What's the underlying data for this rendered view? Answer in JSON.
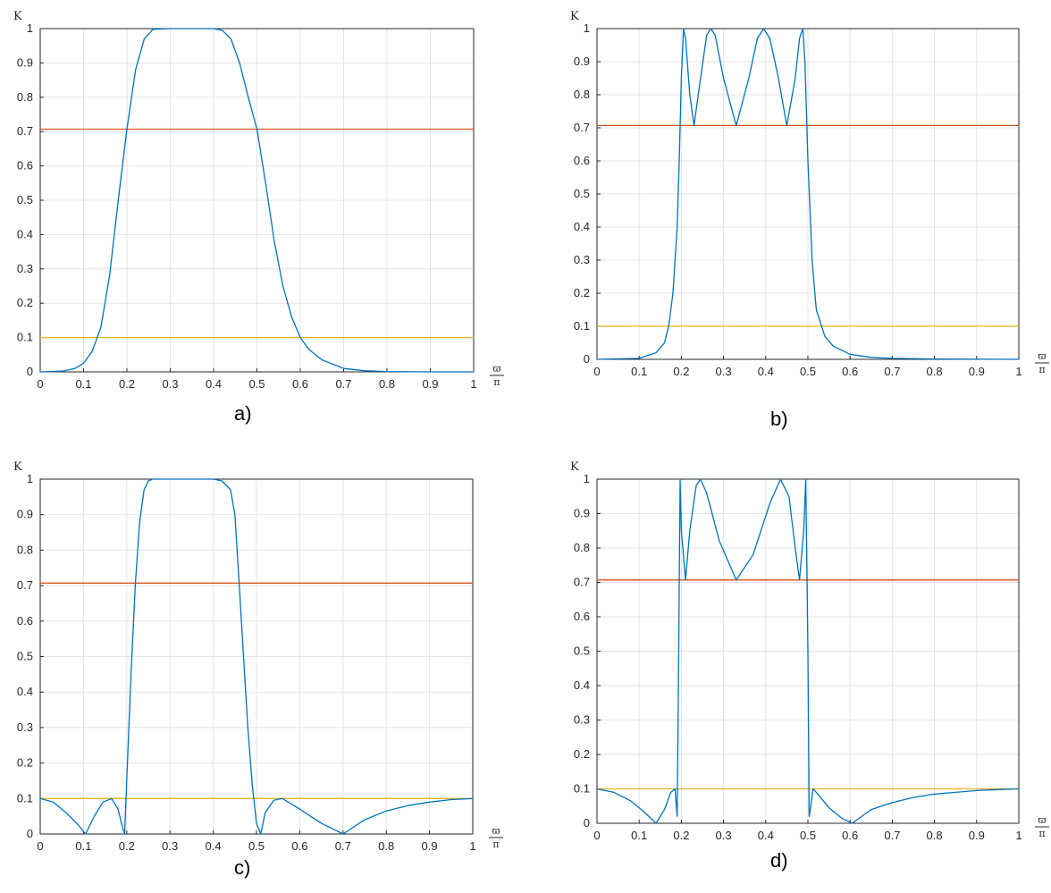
{
  "chart_data": [
    {
      "id": "a",
      "type": "line",
      "caption": "a)",
      "ylabel": "K",
      "xlabel": "ϖ/π",
      "xlim": [
        0,
        1
      ],
      "ylim": [
        0,
        1
      ],
      "grid": true,
      "xticks": [
        "0",
        "0.1",
        "0.2",
        "0.3",
        "0.4",
        "0.5",
        "0.6",
        "0.7",
        "0.8",
        "0.9",
        "1"
      ],
      "yticks": [
        "0",
        "0.1",
        "0.2",
        "0.3",
        "0.4",
        "0.5",
        "0.6",
        "0.7",
        "0.8",
        "0.9",
        "1"
      ],
      "hlines": [
        {
          "y": 0.707,
          "color": "#d95319"
        },
        {
          "y": 0.1,
          "color": "#edb120"
        }
      ],
      "series": [
        {
          "color": "#0072bd",
          "x": [
            0,
            0.05,
            0.08,
            0.1,
            0.12,
            0.14,
            0.16,
            0.18,
            0.2,
            0.22,
            0.24,
            0.26,
            0.3,
            0.35,
            0.4,
            0.42,
            0.44,
            0.46,
            0.48,
            0.5,
            0.52,
            0.54,
            0.56,
            0.58,
            0.6,
            0.62,
            0.65,
            0.7,
            0.75,
            0.8,
            0.9,
            1
          ],
          "y": [
            0,
            0.002,
            0.01,
            0.025,
            0.06,
            0.13,
            0.28,
            0.5,
            0.707,
            0.88,
            0.97,
            0.998,
            1,
            1,
            1,
            0.995,
            0.97,
            0.9,
            0.8,
            0.707,
            0.55,
            0.38,
            0.25,
            0.16,
            0.1,
            0.065,
            0.035,
            0.01,
            0.003,
            0.001,
            0,
            0
          ]
        }
      ]
    },
    {
      "id": "b",
      "type": "line",
      "caption": "b)",
      "ylabel": "K",
      "xlabel": "ϖ/π",
      "xlim": [
        0,
        1
      ],
      "ylim": [
        0,
        1
      ],
      "grid": true,
      "xticks": [
        "0",
        "0.1",
        "0.2",
        "0.3",
        "0.4",
        "0.5",
        "0.6",
        "0.7",
        "0.8",
        "0.9",
        "1"
      ],
      "yticks": [
        "0",
        "0.1",
        "0.2",
        "0.3",
        "0.4",
        "0.5",
        "0.6",
        "0.7",
        "0.8",
        "0.9",
        "1"
      ],
      "hlines": [
        {
          "y": 0.707,
          "color": "#d95319"
        },
        {
          "y": 0.1,
          "color": "#edb120"
        }
      ],
      "series": [
        {
          "color": "#0072bd",
          "x": [
            0,
            0.1,
            0.14,
            0.16,
            0.17,
            0.18,
            0.19,
            0.195,
            0.2,
            0.205,
            0.21,
            0.22,
            0.23,
            0.24,
            0.26,
            0.27,
            0.28,
            0.3,
            0.33,
            0.36,
            0.38,
            0.395,
            0.41,
            0.43,
            0.45,
            0.47,
            0.48,
            0.488,
            0.493,
            0.5,
            0.51,
            0.52,
            0.54,
            0.56,
            0.6,
            0.65,
            0.7,
            0.8,
            1
          ],
          "y": [
            0,
            0.003,
            0.02,
            0.05,
            0.1,
            0.2,
            0.4,
            0.6,
            0.85,
            1,
            0.97,
            0.8,
            0.707,
            0.8,
            0.98,
            1,
            0.98,
            0.85,
            0.707,
            0.85,
            0.97,
            1,
            0.97,
            0.85,
            0.707,
            0.85,
            0.97,
            1,
            0.9,
            0.6,
            0.3,
            0.15,
            0.07,
            0.04,
            0.015,
            0.006,
            0.003,
            0.001,
            0
          ]
        }
      ]
    },
    {
      "id": "c",
      "type": "line",
      "caption": "c)",
      "ylabel": "K",
      "xlabel": "ϖ/π",
      "xlim": [
        0,
        1
      ],
      "ylim": [
        0,
        1
      ],
      "grid": true,
      "xticks": [
        "0",
        "0.1",
        "0.2",
        "0.3",
        "0.4",
        "0.5",
        "0.6",
        "0.7",
        "0.8",
        "0.9",
        "1"
      ],
      "yticks": [
        "0",
        "0.1",
        "0.2",
        "0.3",
        "0.4",
        "0.5",
        "0.6",
        "0.7",
        "0.8",
        "0.9",
        "1"
      ],
      "hlines": [
        {
          "y": 0.707,
          "color": "#d95319"
        },
        {
          "y": 0.1,
          "color": "#edb120"
        }
      ],
      "series": [
        {
          "color": "#0072bd",
          "x": [
            0,
            0.03,
            0.06,
            0.085,
            0.105,
            0.125,
            0.145,
            0.165,
            0.18,
            0.19,
            0.195,
            0.2,
            0.21,
            0.22,
            0.23,
            0.24,
            0.25,
            0.26,
            0.3,
            0.35,
            0.4,
            0.42,
            0.44,
            0.45,
            0.46,
            0.47,
            0.48,
            0.49,
            0.5,
            0.51,
            0.52,
            0.54,
            0.56,
            0.6,
            0.65,
            0.7,
            0.75,
            0.8,
            0.85,
            0.9,
            0.95,
            1
          ],
          "y": [
            0.1,
            0.09,
            0.06,
            0.03,
            0,
            0.05,
            0.09,
            0.1,
            0.07,
            0.02,
            0,
            0.15,
            0.45,
            0.707,
            0.88,
            0.97,
            0.995,
            1,
            1,
            1,
            1,
            0.995,
            0.97,
            0.9,
            0.707,
            0.5,
            0.3,
            0.14,
            0.03,
            0,
            0.06,
            0.095,
            0.1,
            0.07,
            0.03,
            0,
            0.04,
            0.065,
            0.08,
            0.09,
            0.097,
            0.1
          ]
        }
      ]
    },
    {
      "id": "d",
      "type": "line",
      "caption": "d)",
      "ylabel": "K",
      "xlabel": "ϖ/π",
      "xlim": [
        0,
        1
      ],
      "ylim": [
        0,
        1
      ],
      "grid": true,
      "xticks": [
        "0",
        "0.1",
        "0.2",
        "0.3",
        "0.4",
        "0.5",
        "0.6",
        "0.7",
        "0.8",
        "0.9",
        "1"
      ],
      "yticks": [
        "0",
        "0.1",
        "0.2",
        "0.3",
        "0.4",
        "0.5",
        "0.6",
        "0.7",
        "0.8",
        "0.9",
        "1"
      ],
      "hlines": [
        {
          "y": 0.707,
          "color": "#d95319"
        },
        {
          "y": 0.1,
          "color": "#edb120"
        }
      ],
      "series": [
        {
          "color": "#0072bd",
          "x": [
            0,
            0.04,
            0.08,
            0.11,
            0.14,
            0.16,
            0.175,
            0.185,
            0.19,
            0.193,
            0.197,
            0.2,
            0.21,
            0.22,
            0.235,
            0.245,
            0.26,
            0.29,
            0.33,
            0.37,
            0.41,
            0.435,
            0.455,
            0.47,
            0.48,
            0.49,
            0.495,
            0.5,
            0.503,
            0.507,
            0.512,
            0.52,
            0.53,
            0.55,
            0.58,
            0.605,
            0.65,
            0.7,
            0.75,
            0.8,
            0.85,
            0.9,
            0.95,
            1
          ],
          "y": [
            0.1,
            0.09,
            0.065,
            0.035,
            0,
            0.04,
            0.09,
            0.1,
            0.02,
            0.4,
            1,
            0.85,
            0.707,
            0.85,
            0.98,
            1,
            0.96,
            0.82,
            0.707,
            0.78,
            0.93,
            1,
            0.95,
            0.8,
            0.707,
            0.85,
            1,
            0.5,
            0.02,
            0.05,
            0.1,
            0.09,
            0.075,
            0.045,
            0.015,
            0,
            0.04,
            0.06,
            0.075,
            0.085,
            0.09,
            0.095,
            0.098,
            0.1
          ]
        }
      ]
    }
  ]
}
